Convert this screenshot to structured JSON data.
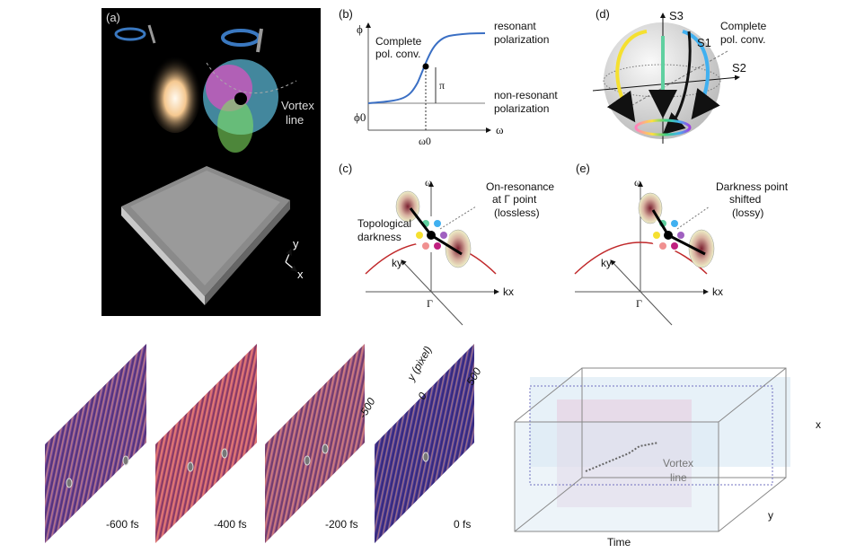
{
  "panel_a": {
    "label": "(a)",
    "vortex_line": [
      "Vortex",
      "line"
    ],
    "axis_x": "x",
    "axis_y": "y"
  },
  "panel_b": {
    "label": "(b)",
    "y_axis": "ϕ",
    "x_axis": "ω",
    "phi0": "ϕ0",
    "omega0": "ω0",
    "pi": "π",
    "complete": [
      "Complete",
      "pol. conv."
    ],
    "resonant": [
      "resonant",
      "polarization"
    ],
    "nonresonant": [
      "non-resonant",
      "polarization"
    ]
  },
  "panel_c": {
    "label": "(c)",
    "omega": "ω",
    "kx": "kx",
    "ky": "ky",
    "gamma": "Γ",
    "annotation": [
      "On-resonance",
      "at Γ point",
      "(lossless)"
    ],
    "darkness": [
      "Topological",
      "darkness"
    ]
  },
  "panel_d": {
    "label": "(d)",
    "s1": "S1",
    "s2": "S2",
    "s3": "S3",
    "complete": [
      "Complete",
      "pol. conv."
    ]
  },
  "panel_e": {
    "label": "(e)",
    "omega": "ω",
    "kx": "kx",
    "ky": "ky",
    "gamma": "Γ",
    "annotation": [
      "Darkness point",
      "shifted",
      "(lossy)"
    ]
  },
  "frames": {
    "times": [
      "-600 fs",
      "-400 fs",
      "-200 fs",
      "0 fs"
    ],
    "y_axis": "y (pixel)",
    "ticks": [
      "-500",
      "0",
      "500"
    ]
  },
  "volume": {
    "x": "x",
    "y": "y",
    "time": "Time",
    "vortex_line": [
      "Vortex",
      "line"
    ]
  },
  "colors": {
    "curve": "#3a6fc4",
    "band": "#c0282a",
    "frame_bg": [
      "#7a4aa0",
      "#c9587a",
      "#a85a8a",
      "#4a3aa0"
    ]
  }
}
